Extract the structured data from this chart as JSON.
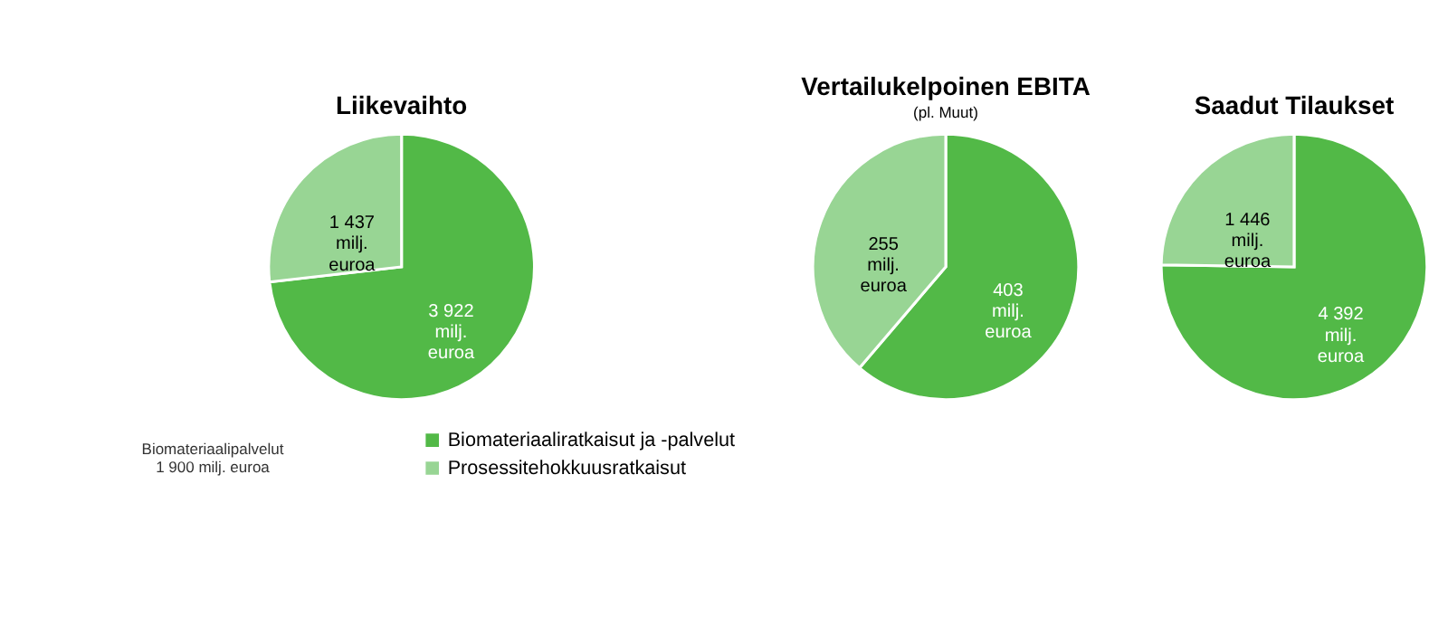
{
  "chart_data": [
    {
      "type": "pie",
      "title": "Liikevaihto",
      "categories": [
        "Biomateriaaliratkaisut ja -palvelut",
        "Prosessitehokkuusratkaisut"
      ],
      "values": [
        3922,
        1437
      ],
      "colors": [
        "#52b947",
        "#98d594"
      ],
      "value_labels": [
        "3 922\nmilj.\neuroa",
        "1 437\nmilj.\neuroa"
      ],
      "legend": "bottom",
      "annotations": [
        "Biomateriaalipalvelut\n1 900 milj. euroa"
      ]
    },
    {
      "type": "pie",
      "title": "Vertailukelpoinen EBITA",
      "subtitle": "(pl. Muut)",
      "categories": [
        null,
        null
      ],
      "values": [
        403,
        255
      ],
      "colors": [
        "#52b947",
        "#98d594"
      ],
      "value_labels": [
        "403\nmilj.\neuroa",
        "255\nmilj.\neuroa"
      ]
    },
    {
      "type": "pie",
      "title": "Saadut Tilaukset",
      "categories": [
        null,
        null
      ],
      "values": [
        4392,
        1446
      ],
      "colors": [
        "#52b947",
        "#98d594"
      ],
      "value_labels": [
        "4 392\nmilj.\neuroa",
        "1 446\nmilj.\neuroa"
      ]
    }
  ]
}
